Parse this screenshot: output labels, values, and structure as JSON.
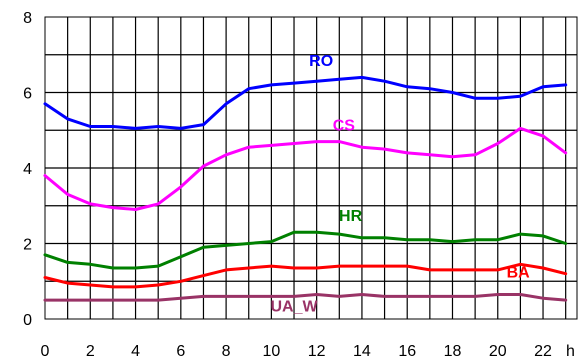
{
  "chart_data": {
    "type": "line",
    "title": "",
    "xlabel": "h",
    "ylabel": "",
    "xlim": [
      0,
      23.5
    ],
    "ylim": [
      0,
      8
    ],
    "grid": true,
    "x_ticks": [
      "0",
      "2",
      "4",
      "6",
      "8",
      "10",
      "12",
      "14",
      "16",
      "18",
      "20",
      "22"
    ],
    "y_ticks": [
      "0",
      "2",
      "4",
      "6",
      "8"
    ],
    "x": [
      0,
      1,
      2,
      3,
      4,
      5,
      6,
      7,
      8,
      9,
      10,
      11,
      12,
      13,
      14,
      15,
      16,
      17,
      18,
      19,
      20,
      21,
      22,
      23
    ],
    "series": [
      {
        "name": "RO",
        "color": "#0000ff",
        "values": [
          5.7,
          5.3,
          5.1,
          5.1,
          5.05,
          5.1,
          5.05,
          5.15,
          5.7,
          6.1,
          6.2,
          6.25,
          6.3,
          6.35,
          6.4,
          6.3,
          6.15,
          6.1,
          6.0,
          5.85,
          5.85,
          5.9,
          6.15,
          6.2
        ]
      },
      {
        "name": "CS",
        "color": "#ff00ff",
        "values": [
          3.8,
          3.3,
          3.05,
          2.95,
          2.9,
          3.05,
          3.5,
          4.05,
          4.35,
          4.55,
          4.6,
          4.65,
          4.7,
          4.7,
          4.55,
          4.5,
          4.4,
          4.35,
          4.3,
          4.35,
          4.65,
          5.05,
          4.85,
          4.4
        ]
      },
      {
        "name": "HR",
        "color": "#008000",
        "values": [
          1.7,
          1.5,
          1.45,
          1.35,
          1.35,
          1.4,
          1.65,
          1.9,
          1.95,
          2.0,
          2.05,
          2.3,
          2.3,
          2.25,
          2.15,
          2.15,
          2.1,
          2.1,
          2.05,
          2.1,
          2.1,
          2.25,
          2.2,
          2.0
        ]
      },
      {
        "name": "BA",
        "color": "#ff0000",
        "values": [
          1.1,
          0.95,
          0.9,
          0.85,
          0.85,
          0.9,
          1.0,
          1.15,
          1.3,
          1.35,
          1.4,
          1.35,
          1.35,
          1.4,
          1.4,
          1.4,
          1.4,
          1.3,
          1.3,
          1.3,
          1.3,
          1.45,
          1.35,
          1.2
        ]
      },
      {
        "name": "UA_W",
        "color": "#993366",
        "values": [
          0.5,
          0.5,
          0.5,
          0.5,
          0.5,
          0.5,
          0.55,
          0.6,
          0.6,
          0.6,
          0.6,
          0.6,
          0.65,
          0.6,
          0.65,
          0.6,
          0.6,
          0.6,
          0.6,
          0.6,
          0.65,
          0.65,
          0.55,
          0.5
        ]
      }
    ]
  }
}
